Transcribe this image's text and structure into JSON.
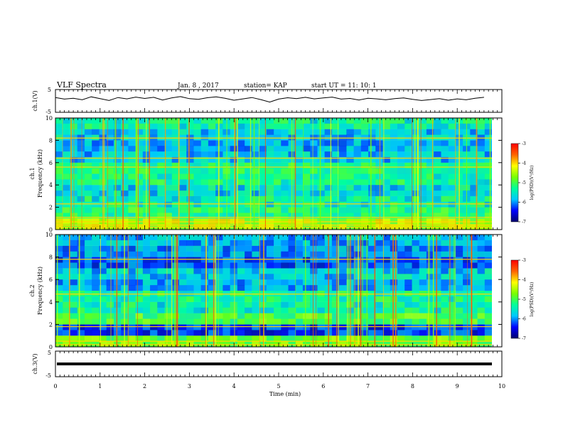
{
  "header": {
    "title": "VLF Spectra",
    "date": "Jan. 8 , 2017",
    "station": "station= KAP",
    "start": "start UT = 11: 10: 1"
  },
  "chart_data": [
    {
      "type": "line",
      "panel": "ch1-waveform",
      "ylabel": "ch.1(V)",
      "ylim": [
        -5,
        5
      ],
      "yticks": [
        "5",
        "-5"
      ],
      "xlim": [
        0,
        10
      ],
      "series": [
        {
          "x_step_min": 0.2,
          "x_end": 9.8,
          "values": [
            1.5,
            0.8,
            1.2,
            0.5,
            1.8,
            1.0,
            0.2,
            1.5,
            0.9,
            1.7,
            1.1,
            1.6,
            0.4,
            1.3,
            1.9,
            1.0,
            0.7,
            1.4,
            1.8,
            1.2,
            0.3,
            0.9,
            1.5,
            0.6,
            -0.5,
            0.8,
            1.4,
            1.0,
            1.6,
            0.9,
            1.3,
            1.7,
            0.8,
            1.1,
            0.4,
            1.2,
            0.9,
            0.5,
            1.0,
            1.3,
            0.7,
            0.2,
            0.6,
            1.0,
            0.3,
            0.9,
            0.5,
            1.2,
            1.6
          ]
        }
      ]
    },
    {
      "type": "heatmap",
      "panel": "ch1-spectrogram",
      "ylabel": "ch.1 Frequency (kHz)",
      "ylim": [
        0,
        10
      ],
      "yticks": [
        "0",
        "2",
        "4",
        "6",
        "8",
        "10"
      ],
      "xlim": [
        0,
        10
      ],
      "colorbar": {
        "label": "log(PSD)(V²/Hz)",
        "range": [
          -7,
          -3
        ],
        "ticks": [
          "-3",
          "-4",
          "-5",
          "-6",
          "-7"
        ]
      },
      "freq_bands_khz": [
        0.5,
        1.5,
        2.5,
        3.5,
        4.5,
        5.5,
        6.5,
        7.5,
        8.5,
        9.5
      ],
      "level_log_psd": [
        -4.5,
        -5.2,
        -5.4,
        -5.6,
        -5.3,
        -5.2,
        -5.8,
        -5.9,
        -5.7,
        -5.4
      ],
      "bright_lines_khz": [
        0.2,
        0.4,
        0.7,
        1.1,
        2.3,
        5.6,
        6.4,
        8.2
      ]
    },
    {
      "type": "heatmap",
      "panel": "ch2-spectrogram",
      "ylabel": "ch.2 Frequency (kHz)",
      "ylim": [
        0,
        10
      ],
      "yticks": [
        "0",
        "2",
        "4",
        "6",
        "8",
        "10"
      ],
      "xlim": [
        0,
        10
      ],
      "colorbar": {
        "label": "log(PSD)(V²/Hz)",
        "range": [
          -7,
          -3
        ],
        "ticks": [
          "-3",
          "-4",
          "-5",
          "-6",
          "-7"
        ]
      },
      "freq_bands_khz": [
        0.5,
        1.5,
        2.5,
        3.5,
        4.5,
        5.5,
        6.5,
        7.5,
        8.5,
        9.5
      ],
      "level_log_psd": [
        -4.8,
        -6.3,
        -5.0,
        -5.4,
        -5.3,
        -5.9,
        -5.7,
        -6.2,
        -6.0,
        -5.9
      ],
      "bright_lines_khz": [
        0.2,
        0.5,
        1.8,
        4.7,
        7.8
      ]
    },
    {
      "type": "line",
      "panel": "ch3-waveform",
      "ylabel": "ch.3(V)",
      "ylim": [
        -5,
        5
      ],
      "yticks": [
        "5",
        "-5"
      ],
      "xlim": [
        0,
        10
      ],
      "series": [
        {
          "x": [
            0,
            9.8
          ],
          "values": [
            0,
            0
          ]
        }
      ]
    }
  ],
  "xaxis": {
    "label": "Time (min)",
    "ticks": [
      "0",
      "1",
      "2",
      "3",
      "4",
      "5",
      "6",
      "7",
      "8",
      "9",
      "10"
    ]
  },
  "colors": {
    "colormap": [
      "#00006e",
      "#0000ff",
      "#00c8ff",
      "#00ff9b",
      "#78ff00",
      "#ffff00",
      "#ff6400",
      "#ff0000"
    ]
  }
}
